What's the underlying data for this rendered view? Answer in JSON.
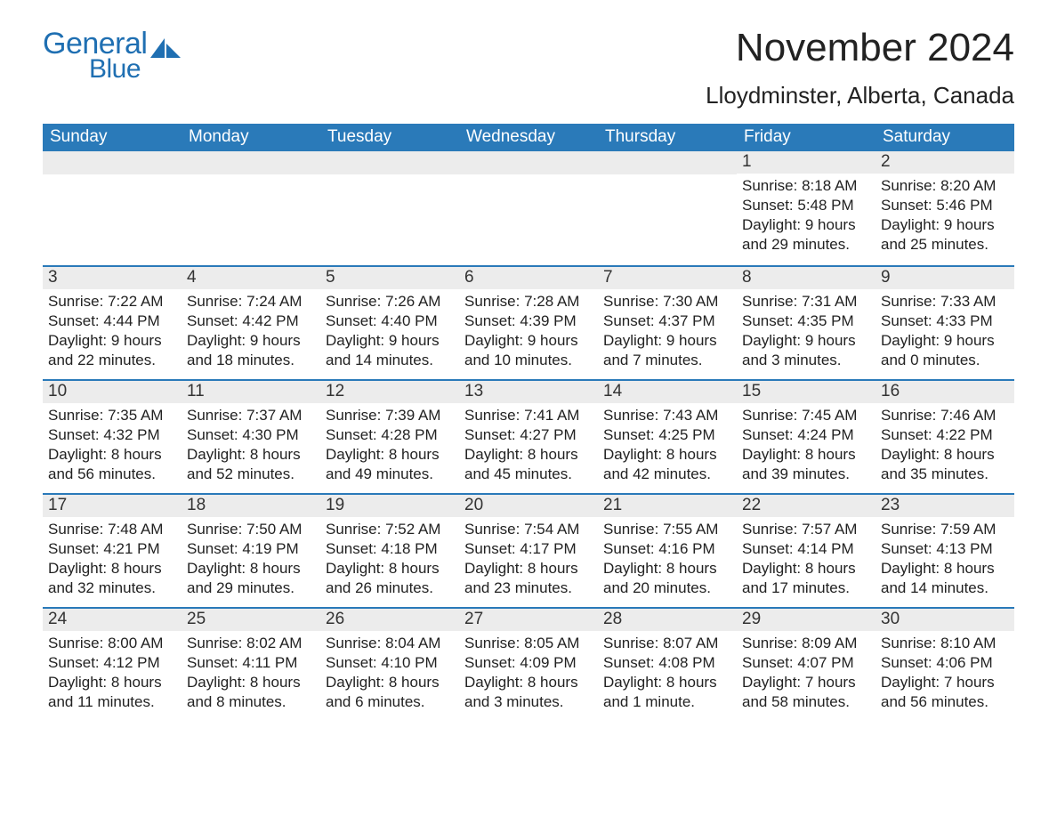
{
  "logo": {
    "text_general": "General",
    "text_blue": "Blue",
    "color": "#1f6fb2"
  },
  "title": "November 2024",
  "location": "Lloydminster, Alberta, Canada",
  "header_bg": "#2a7ab9",
  "header_text_color": "#ffffff",
  "daynum_bg": "#ececec",
  "body_bg": "#ffffff",
  "text_color": "#222222",
  "fontsize_title": 44,
  "fontsize_location": 26,
  "fontsize_header": 19,
  "fontsize_daynum": 19,
  "fontsize_body": 17,
  "weekdays": [
    "Sunday",
    "Monday",
    "Tuesday",
    "Wednesday",
    "Thursday",
    "Friday",
    "Saturday"
  ],
  "weeks": [
    [
      null,
      null,
      null,
      null,
      null,
      {
        "n": "1",
        "sunrise": "8:18 AM",
        "sunset": "5:48 PM",
        "daylight": "9 hours and 29 minutes."
      },
      {
        "n": "2",
        "sunrise": "8:20 AM",
        "sunset": "5:46 PM",
        "daylight": "9 hours and 25 minutes."
      }
    ],
    [
      {
        "n": "3",
        "sunrise": "7:22 AM",
        "sunset": "4:44 PM",
        "daylight": "9 hours and 22 minutes."
      },
      {
        "n": "4",
        "sunrise": "7:24 AM",
        "sunset": "4:42 PM",
        "daylight": "9 hours and 18 minutes."
      },
      {
        "n": "5",
        "sunrise": "7:26 AM",
        "sunset": "4:40 PM",
        "daylight": "9 hours and 14 minutes."
      },
      {
        "n": "6",
        "sunrise": "7:28 AM",
        "sunset": "4:39 PM",
        "daylight": "9 hours and 10 minutes."
      },
      {
        "n": "7",
        "sunrise": "7:30 AM",
        "sunset": "4:37 PM",
        "daylight": "9 hours and 7 minutes."
      },
      {
        "n": "8",
        "sunrise": "7:31 AM",
        "sunset": "4:35 PM",
        "daylight": "9 hours and 3 minutes."
      },
      {
        "n": "9",
        "sunrise": "7:33 AM",
        "sunset": "4:33 PM",
        "daylight": "9 hours and 0 minutes."
      }
    ],
    [
      {
        "n": "10",
        "sunrise": "7:35 AM",
        "sunset": "4:32 PM",
        "daylight": "8 hours and 56 minutes."
      },
      {
        "n": "11",
        "sunrise": "7:37 AM",
        "sunset": "4:30 PM",
        "daylight": "8 hours and 52 minutes."
      },
      {
        "n": "12",
        "sunrise": "7:39 AM",
        "sunset": "4:28 PM",
        "daylight": "8 hours and 49 minutes."
      },
      {
        "n": "13",
        "sunrise": "7:41 AM",
        "sunset": "4:27 PM",
        "daylight": "8 hours and 45 minutes."
      },
      {
        "n": "14",
        "sunrise": "7:43 AM",
        "sunset": "4:25 PM",
        "daylight": "8 hours and 42 minutes."
      },
      {
        "n": "15",
        "sunrise": "7:45 AM",
        "sunset": "4:24 PM",
        "daylight": "8 hours and 39 minutes."
      },
      {
        "n": "16",
        "sunrise": "7:46 AM",
        "sunset": "4:22 PM",
        "daylight": "8 hours and 35 minutes."
      }
    ],
    [
      {
        "n": "17",
        "sunrise": "7:48 AM",
        "sunset": "4:21 PM",
        "daylight": "8 hours and 32 minutes."
      },
      {
        "n": "18",
        "sunrise": "7:50 AM",
        "sunset": "4:19 PM",
        "daylight": "8 hours and 29 minutes."
      },
      {
        "n": "19",
        "sunrise": "7:52 AM",
        "sunset": "4:18 PM",
        "daylight": "8 hours and 26 minutes."
      },
      {
        "n": "20",
        "sunrise": "7:54 AM",
        "sunset": "4:17 PM",
        "daylight": "8 hours and 23 minutes."
      },
      {
        "n": "21",
        "sunrise": "7:55 AM",
        "sunset": "4:16 PM",
        "daylight": "8 hours and 20 minutes."
      },
      {
        "n": "22",
        "sunrise": "7:57 AM",
        "sunset": "4:14 PM",
        "daylight": "8 hours and 17 minutes."
      },
      {
        "n": "23",
        "sunrise": "7:59 AM",
        "sunset": "4:13 PM",
        "daylight": "8 hours and 14 minutes."
      }
    ],
    [
      {
        "n": "24",
        "sunrise": "8:00 AM",
        "sunset": "4:12 PM",
        "daylight": "8 hours and 11 minutes."
      },
      {
        "n": "25",
        "sunrise": "8:02 AM",
        "sunset": "4:11 PM",
        "daylight": "8 hours and 8 minutes."
      },
      {
        "n": "26",
        "sunrise": "8:04 AM",
        "sunset": "4:10 PM",
        "daylight": "8 hours and 6 minutes."
      },
      {
        "n": "27",
        "sunrise": "8:05 AM",
        "sunset": "4:09 PM",
        "daylight": "8 hours and 3 minutes."
      },
      {
        "n": "28",
        "sunrise": "8:07 AM",
        "sunset": "4:08 PM",
        "daylight": "8 hours and 1 minute."
      },
      {
        "n": "29",
        "sunrise": "8:09 AM",
        "sunset": "4:07 PM",
        "daylight": "7 hours and 58 minutes."
      },
      {
        "n": "30",
        "sunrise": "8:10 AM",
        "sunset": "4:06 PM",
        "daylight": "7 hours and 56 minutes."
      }
    ]
  ],
  "labels": {
    "sunrise": "Sunrise: ",
    "sunset": "Sunset: ",
    "daylight": "Daylight: "
  }
}
